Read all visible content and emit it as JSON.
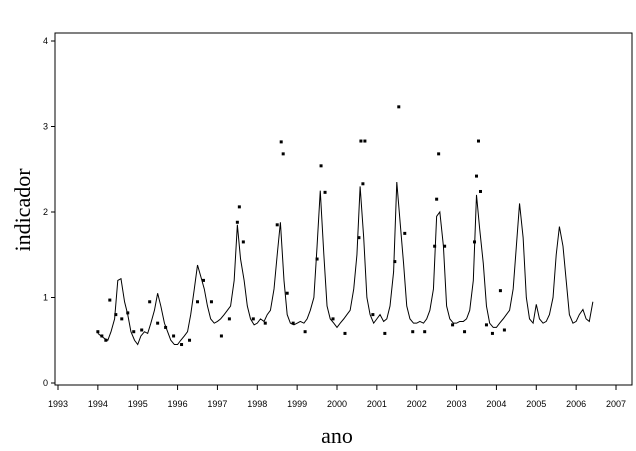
{
  "chart_data": {
    "type": "line",
    "x_label": "ano",
    "y_label": "indicador",
    "xlim": [
      1993,
      2007
    ],
    "xticks": [
      1993,
      1994,
      1995,
      1996,
      1997,
      1998,
      1999,
      2000,
      2001,
      2002,
      2003,
      2004,
      2005,
      2006,
      2007
    ],
    "ylim": [
      0,
      4
    ],
    "yticks": [
      0,
      1,
      2,
      3,
      4
    ],
    "grid": false,
    "series": [
      {
        "type": "line",
        "color": "#000000",
        "x": [
          1994,
          1994.08,
          1994.17,
          1994.25,
          1994.33,
          1994.42,
          1994.5,
          1994.58,
          1994.67,
          1994.75,
          1994.83,
          1994.92,
          1995,
          1995.08,
          1995.17,
          1995.25,
          1995.33,
          1995.42,
          1995.5,
          1995.58,
          1995.67,
          1995.75,
          1995.83,
          1995.92,
          1996,
          1996.08,
          1996.17,
          1996.25,
          1996.33,
          1996.42,
          1996.5,
          1996.58,
          1996.67,
          1996.75,
          1996.83,
          1996.92,
          1997,
          1997.08,
          1997.17,
          1997.25,
          1997.33,
          1997.42,
          1997.5,
          1997.58,
          1997.67,
          1997.75,
          1997.83,
          1997.92,
          1998,
          1998.08,
          1998.17,
          1998.25,
          1998.33,
          1998.42,
          1998.5,
          1998.58,
          1998.67,
          1998.75,
          1998.83,
          1998.92,
          1999,
          1999.08,
          1999.17,
          1999.25,
          1999.33,
          1999.42,
          1999.5,
          1999.58,
          1999.67,
          1999.75,
          1999.83,
          1999.92,
          2000,
          2000.08,
          2000.17,
          2000.25,
          2000.33,
          2000.42,
          2000.5,
          2000.58,
          2000.67,
          2000.75,
          2000.83,
          2000.92,
          2001,
          2001.08,
          2001.17,
          2001.25,
          2001.33,
          2001.42,
          2001.5,
          2001.58,
          2001.67,
          2001.75,
          2001.83,
          2001.92,
          2002,
          2002.08,
          2002.17,
          2002.25,
          2002.33,
          2002.42,
          2002.5,
          2002.58,
          2002.67,
          2002.75,
          2002.83,
          2002.92,
          2003,
          2003.08,
          2003.17,
          2003.25,
          2003.33,
          2003.42,
          2003.5,
          2003.58,
          2003.67,
          2003.75,
          2003.83,
          2003.92,
          2004,
          2004.08,
          2004.17,
          2004.25,
          2004.33,
          2004.42,
          2004.5,
          2004.58,
          2004.67,
          2004.75,
          2004.83,
          2004.92,
          2005,
          2005.08,
          2005.17,
          2005.25,
          2005.33,
          2005.42,
          2005.5,
          2005.58,
          2005.67,
          2005.75,
          2005.83,
          2005.92,
          2006,
          2006.08,
          2006.17,
          2006.25,
          2006.33,
          2006.42
        ],
        "values": [
          0.58,
          0.55,
          0.52,
          0.5,
          0.6,
          0.75,
          1.2,
          1.22,
          0.95,
          0.8,
          0.6,
          0.5,
          0.45,
          0.55,
          0.6,
          0.58,
          0.7,
          0.85,
          1.05,
          0.9,
          0.7,
          0.6,
          0.5,
          0.45,
          0.45,
          0.5,
          0.55,
          0.6,
          0.8,
          1.1,
          1.38,
          1.25,
          1.1,
          0.9,
          0.75,
          0.7,
          0.72,
          0.75,
          0.8,
          0.85,
          0.9,
          1.2,
          1.85,
          1.45,
          1.2,
          0.9,
          0.75,
          0.68,
          0.7,
          0.75,
          0.72,
          0.8,
          0.85,
          1.1,
          1.5,
          1.88,
          1.2,
          0.8,
          0.7,
          0.68,
          0.7,
          0.72,
          0.7,
          0.75,
          0.85,
          1.0,
          1.6,
          2.25,
          1.5,
          0.9,
          0.75,
          0.7,
          0.65,
          0.7,
          0.75,
          0.8,
          0.85,
          1.1,
          1.5,
          2.3,
          1.7,
          1.0,
          0.8,
          0.7,
          0.75,
          0.8,
          0.72,
          0.75,
          0.9,
          1.3,
          2.35,
          1.9,
          1.4,
          0.9,
          0.75,
          0.7,
          0.7,
          0.72,
          0.7,
          0.75,
          0.85,
          1.1,
          1.95,
          2.0,
          1.6,
          0.9,
          0.75,
          0.7,
          0.7,
          0.72,
          0.72,
          0.75,
          0.85,
          1.2,
          2.2,
          1.8,
          1.4,
          0.9,
          0.7,
          0.65,
          0.65,
          0.7,
          0.75,
          0.8,
          0.85,
          1.1,
          1.6,
          2.1,
          1.7,
          1.0,
          0.75,
          0.7,
          0.92,
          0.75,
          0.7,
          0.72,
          0.8,
          1.0,
          1.5,
          1.83,
          1.6,
          1.2,
          0.8,
          0.7,
          0.72,
          0.8,
          0.86,
          0.75,
          0.72,
          0.95
        ]
      },
      {
        "type": "scatter",
        "color": "#000000",
        "x": [
          1994,
          1994.1,
          1994.2,
          1994.3,
          1994.45,
          1994.6,
          1994.75,
          1994.9,
          1995.1,
          1995.3,
          1995.5,
          1995.7,
          1995.9,
          1996.1,
          1996.3,
          1996.5,
          1996.65,
          1996.85,
          1997.1,
          1997.3,
          1997.5,
          1997.55,
          1997.65,
          1997.9,
          1998.2,
          1998.5,
          1998.6,
          1998.65,
          1998.75,
          1998.9,
          1999.2,
          1999.5,
          1999.6,
          1999.7,
          1999.9,
          2000.2,
          2000.55,
          2000.6,
          2000.65,
          2000.7,
          2000.9,
          2001.2,
          2001.45,
          2001.55,
          2001.7,
          2001.9,
          2002.2,
          2002.45,
          2002.5,
          2002.55,
          2002.7,
          2002.9,
          2003.2,
          2003.45,
          2003.5,
          2003.55,
          2003.6,
          2003.75,
          2003.9,
          2004.1,
          2004.2
        ],
        "values": [
          0.6,
          0.55,
          0.5,
          0.97,
          0.8,
          0.75,
          0.82,
          0.6,
          0.62,
          0.95,
          0.7,
          0.65,
          0.55,
          0.45,
          0.5,
          0.95,
          1.2,
          0.95,
          0.55,
          0.75,
          1.88,
          2.06,
          1.65,
          0.75,
          0.7,
          1.85,
          2.82,
          2.68,
          1.05,
          0.7,
          0.6,
          1.45,
          2.54,
          2.23,
          0.75,
          0.58,
          1.7,
          2.83,
          2.33,
          2.83,
          0.8,
          0.58,
          1.42,
          3.23,
          1.75,
          0.6,
          0.6,
          1.6,
          2.15,
          2.68,
          1.6,
          0.68,
          0.6,
          1.65,
          2.42,
          2.83,
          2.24,
          0.68,
          0.58,
          1.08,
          0.62
        ]
      }
    ]
  }
}
